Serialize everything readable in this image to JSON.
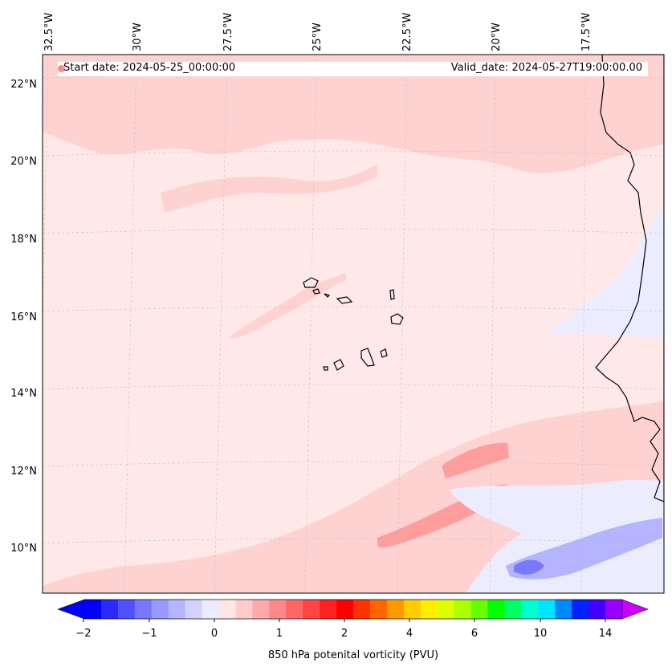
{
  "map": {
    "ocean_color": "#ffe8e8",
    "coast_color": "#000000",
    "lat_labels": [
      "22°N",
      "20°N",
      "18°N",
      "16°N",
      "14°N",
      "12°N",
      "10°N"
    ],
    "lon_labels": [
      "32.5°W",
      "30°W",
      "27.5°W",
      "25°W",
      "22.5°W",
      "20°W",
      "17.5°W"
    ]
  },
  "legend": {
    "start_label": "Start date: 2024-05-25_00:00:00",
    "valid_label": "Valid_date: 2024-05-27T19:00:00.00",
    "dot_color": "#ff8888"
  },
  "colorbar": {
    "label": "850 hPa potenital vorticity (PVU)",
    "ticks": [
      "−2",
      "−1",
      "0",
      "1",
      "2",
      "4",
      "6",
      "10",
      "14"
    ],
    "colors": [
      "#0000ff",
      "#2a2aff",
      "#5050ff",
      "#7878ff",
      "#9898ff",
      "#b4b4ff",
      "#d2d2ff",
      "#ececff",
      "#ffe6e6",
      "#ffcccc",
      "#ffaaaa",
      "#ff8888",
      "#ff6666",
      "#ff4444",
      "#ff2222",
      "#ff0000",
      "#ff3300",
      "#ff6600",
      "#ff9900",
      "#ffcc00",
      "#ffee00",
      "#ddff00",
      "#aaff00",
      "#66ff00",
      "#00ff00",
      "#00ff66",
      "#00ffcc",
      "#00e5ff",
      "#0088ff",
      "#0022ff",
      "#4400ff",
      "#9900ff"
    ],
    "arrow_low": "#0000ff",
    "arrow_high": "#cc00ff"
  }
}
